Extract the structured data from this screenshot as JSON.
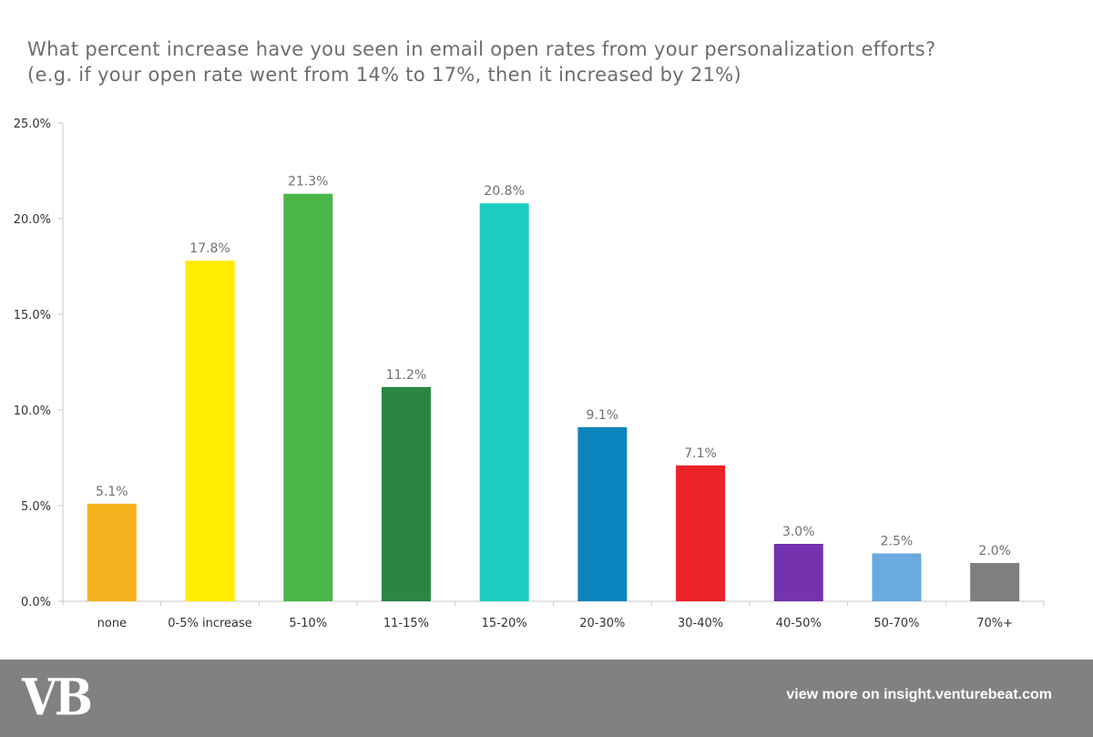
{
  "chart_data": {
    "type": "bar",
    "title": "What percent increase have you seen in email open rates from your personalization efforts? (e.g. if your open rate went from 14% to 17%, then it increased by 21%)",
    "xlabel": "",
    "ylabel": "",
    "ylim": [
      0,
      25
    ],
    "yticks": [
      "0.0%",
      "5.0%",
      "10.0%",
      "15.0%",
      "20.0%",
      "25.0%"
    ],
    "grid": false,
    "categories": [
      "none",
      "0-5% increase",
      "5-10%",
      "11-15%",
      "15-20%",
      "20-30%",
      "30-40%",
      "40-50%",
      "50-70%",
      "70%+"
    ],
    "values": [
      5.1,
      17.8,
      21.3,
      11.2,
      20.8,
      9.1,
      7.1,
      3.0,
      2.5,
      2.0
    ],
    "data_labels": [
      "5.1%",
      "17.8%",
      "21.3%",
      "11.2%",
      "20.8%",
      "9.1%",
      "7.1%",
      "3.0%",
      "2.5%",
      "2.0%"
    ],
    "colors": [
      "#f5b21f",
      "#ffec00",
      "#4bb74a",
      "#2a8642",
      "#1ecdc1",
      "#0b84bd",
      "#ee2229",
      "#7532af",
      "#6aaade",
      "#7f7f81"
    ]
  },
  "footer": {
    "logo": "VB",
    "link": "view more on insight.venturebeat.com",
    "background": "#818083"
  }
}
